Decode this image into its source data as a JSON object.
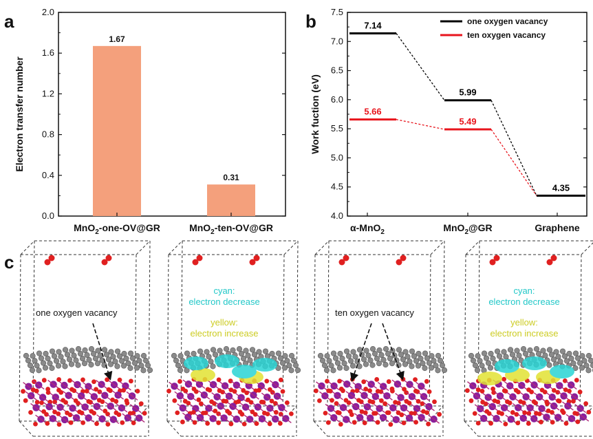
{
  "panel_labels": {
    "a": "a",
    "b": "b",
    "c": "c"
  },
  "chart_data": [
    {
      "type": "bar",
      "panel": "a",
      "categories": [
        "MnO2-one-OV@GR",
        "MnO2-ten-OV@GR"
      ],
      "category_labels": [
        {
          "pre": "MnO",
          "sub": "2",
          "post": "-one-OV@GR"
        },
        {
          "pre": "MnO",
          "sub": "2",
          "post": "-ten-OV@GR"
        }
      ],
      "values": [
        1.67,
        0.31
      ],
      "value_labels": [
        "1.67",
        "0.31"
      ],
      "ylabel": "Electron transfer number",
      "ylim": [
        0.0,
        2.0
      ],
      "yticks": [
        "0.0",
        "0.4",
        "0.8",
        "1.2",
        "1.6",
        "2.0"
      ],
      "bar_color": "#f4a07c"
    },
    {
      "type": "line",
      "panel": "b",
      "categories": [
        "α-MnO2",
        "MnO2@GR",
        "Graphene"
      ],
      "category_labels": [
        {
          "pre": "α-MnO",
          "sub": "2",
          "post": ""
        },
        {
          "pre": "MnO",
          "sub": "2",
          "post": "@GR"
        },
        {
          "pre": "Graphene",
          "sub": "",
          "post": ""
        }
      ],
      "ylabel": "Work fuction (eV)",
      "ylim": [
        4.0,
        7.5
      ],
      "yticks": [
        "4.0",
        "4.5",
        "5.0",
        "5.5",
        "6.0",
        "6.5",
        "7.0",
        "7.5"
      ],
      "series": [
        {
          "name": "one oxygen vacancy",
          "color": "#000000",
          "values": [
            7.14,
            5.99,
            4.35
          ],
          "labels": [
            "7.14",
            "5.99",
            "4.35"
          ]
        },
        {
          "name": "ten oxygen vacancy",
          "color": "#e8141c",
          "values": [
            5.66,
            5.49,
            null
          ],
          "labels": [
            "5.66",
            "5.49",
            ""
          ]
        }
      ],
      "legend_position": "top-right"
    }
  ],
  "panel_c": {
    "structures": [
      {
        "label": "one oxygen vacancy"
      },
      {
        "legend": {
          "line1": "cyan:",
          "line2": "electron decrease",
          "line3": "yellow:",
          "line4": "electron increase"
        }
      },
      {
        "label": "ten oxygen vacancy"
      },
      {
        "legend": {
          "line1": "cyan:",
          "line2": "electron decrease",
          "line3": "yellow:",
          "line4": "electron increase"
        }
      }
    ],
    "colors": {
      "cyan": "#2ad4d4",
      "yellow": "#e2e233",
      "oxygen": "#e02020",
      "manganese": "#8a1f9c",
      "carbon": "#8a8a8a"
    }
  }
}
